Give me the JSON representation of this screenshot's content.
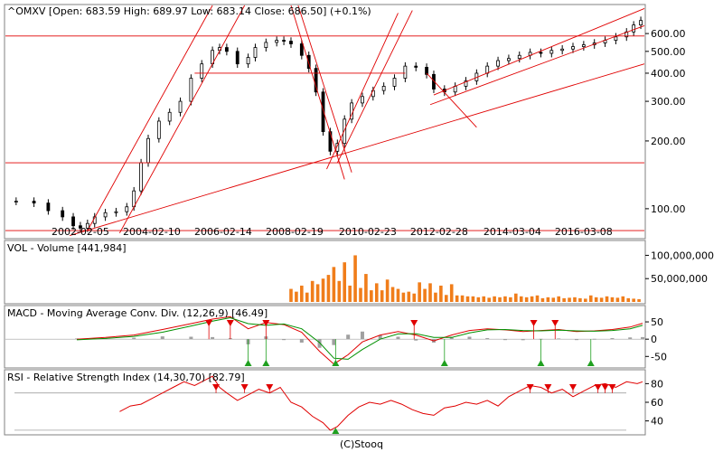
{
  "footer": "(C)Stooq",
  "colors": {
    "price": "#000000",
    "trend": "#e00000",
    "volume": "#f07d1a",
    "macd_line": "#e00000",
    "signal_line": "#009000",
    "hist": "#a0a0a0",
    "rsi": "#e00000",
    "sell": "#e00000",
    "buy": "#20a020",
    "grid": "#a0a0a0"
  },
  "chart_data": [
    {
      "type": "candlestick",
      "title": "^OMXV [Open: 683.59  High: 689.97  Low: 683.14  Close: 686.50]  (+0.1%)",
      "scale": "log",
      "x_tick_labels": [
        "2002-02-05",
        "2004-02-10",
        "2006-02-14",
        "2008-02-19",
        "2010-02-23",
        "2012-02-28",
        "2014-03-04",
        "2016-03-08"
      ],
      "x_range": [
        2000.0,
        2017.9
      ],
      "y_tick_labels": [
        "600.00",
        "500.00",
        "400.00",
        "300.00",
        "200.00",
        "100.00"
      ],
      "y_ticks": [
        600,
        500,
        400,
        300,
        200,
        100
      ],
      "ylim": [
        75,
        800
      ],
      "points": [
        [
          2000.3,
          108
        ],
        [
          2000.8,
          106
        ],
        [
          2001.2,
          98
        ],
        [
          2001.6,
          92
        ],
        [
          2001.9,
          84
        ],
        [
          2002.1,
          82
        ],
        [
          2002.3,
          86
        ],
        [
          2002.5,
          92
        ],
        [
          2002.8,
          96
        ],
        [
          2003.1,
          97
        ],
        [
          2003.4,
          102
        ],
        [
          2003.6,
          120
        ],
        [
          2003.8,
          160
        ],
        [
          2004.0,
          205
        ],
        [
          2004.3,
          245
        ],
        [
          2004.6,
          268
        ],
        [
          2004.9,
          300
        ],
        [
          2005.2,
          380
        ],
        [
          2005.5,
          440
        ],
        [
          2005.8,
          505
        ],
        [
          2006.0,
          520
        ],
        [
          2006.2,
          500
        ],
        [
          2006.5,
          440
        ],
        [
          2006.8,
          470
        ],
        [
          2007.0,
          520
        ],
        [
          2007.3,
          548
        ],
        [
          2007.6,
          560
        ],
        [
          2007.8,
          555
        ],
        [
          2008.0,
          540
        ],
        [
          2008.3,
          480
        ],
        [
          2008.5,
          420
        ],
        [
          2008.7,
          330
        ],
        [
          2008.9,
          220
        ],
        [
          2009.1,
          180
        ],
        [
          2009.3,
          195
        ],
        [
          2009.5,
          250
        ],
        [
          2009.7,
          295
        ],
        [
          2010.0,
          315
        ],
        [
          2010.3,
          335
        ],
        [
          2010.6,
          350
        ],
        [
          2010.9,
          380
        ],
        [
          2011.2,
          430
        ],
        [
          2011.5,
          425
        ],
        [
          2011.8,
          395
        ],
        [
          2012.0,
          340
        ],
        [
          2012.3,
          330
        ],
        [
          2012.6,
          350
        ],
        [
          2012.9,
          370
        ],
        [
          2013.2,
          400
        ],
        [
          2013.5,
          430
        ],
        [
          2013.8,
          455
        ],
        [
          2014.1,
          465
        ],
        [
          2014.4,
          480
        ],
        [
          2014.7,
          495
        ],
        [
          2015.0,
          490
        ],
        [
          2015.3,
          505
        ],
        [
          2015.6,
          512
        ],
        [
          2015.9,
          525
        ],
        [
          2016.2,
          535
        ],
        [
          2016.5,
          545
        ],
        [
          2016.8,
          560
        ],
        [
          2017.1,
          580
        ],
        [
          2017.4,
          610
        ],
        [
          2017.6,
          655
        ],
        [
          2017.8,
          686
        ]
      ]
    },
    {
      "type": "bar",
      "title": "VOL - Volume [441,984]",
      "y_tick_labels": [
        "100,000,000",
        "50,000,000"
      ],
      "y_ticks": [
        100000000,
        50000000
      ],
      "ylim": [
        0,
        128000000
      ],
      "x": [
        2008.0,
        2008.15,
        2008.3,
        2008.45,
        2008.6,
        2008.75,
        2008.9,
        2009.05,
        2009.2,
        2009.35,
        2009.5,
        2009.65,
        2009.8,
        2009.95,
        2010.1,
        2010.25,
        2010.4,
        2010.55,
        2010.7,
        2010.85,
        2011.0,
        2011.15,
        2011.3,
        2011.45,
        2011.6,
        2011.75,
        2011.9,
        2012.05,
        2012.2,
        2012.35,
        2012.5,
        2012.65,
        2012.8,
        2012.95,
        2013.1,
        2013.25,
        2013.4,
        2013.55,
        2013.7,
        2013.85,
        2014.0,
        2014.15,
        2014.3,
        2014.45,
        2014.6,
        2014.75,
        2014.9,
        2015.05,
        2015.2,
        2015.35,
        2015.5,
        2015.65,
        2015.8,
        2015.95,
        2016.1,
        2016.25,
        2016.4,
        2016.55,
        2016.7,
        2016.85,
        2017.0,
        2017.15,
        2017.3,
        2017.45,
        2017.6,
        2017.75
      ],
      "values": [
        28000000,
        22000000,
        35000000,
        20000000,
        45000000,
        38000000,
        50000000,
        58000000,
        75000000,
        45000000,
        85000000,
        35000000,
        100000000,
        30000000,
        60000000,
        25000000,
        40000000,
        25000000,
        48000000,
        32000000,
        28000000,
        20000000,
        22000000,
        18000000,
        42000000,
        28000000,
        40000000,
        20000000,
        35000000,
        15000000,
        38000000,
        14000000,
        14000000,
        12000000,
        12000000,
        10000000,
        12000000,
        9000000,
        12000000,
        10000000,
        12000000,
        10000000,
        18000000,
        12000000,
        10000000,
        12000000,
        14000000,
        8000000,
        10000000,
        9000000,
        12000000,
        8000000,
        9000000,
        10000000,
        8000000,
        7000000,
        14000000,
        10000000,
        9000000,
        12000000,
        10000000,
        9000000,
        12000000,
        8000000,
        7000000,
        6000000
      ]
    },
    {
      "type": "line",
      "title": "MACD - Moving Average Conv. Div. (12,26,9) [46.49]",
      "y_tick_labels": [
        "50",
        "0",
        "-50"
      ],
      "y_ticks": [
        50,
        0,
        -50
      ],
      "ylim": [
        -78,
        92
      ],
      "x": [
        2002.0,
        2002.8,
        2003.6,
        2004.4,
        2005.2,
        2005.8,
        2006.3,
        2006.8,
        2007.3,
        2007.8,
        2008.3,
        2008.8,
        2009.2,
        2009.6,
        2010.0,
        2010.5,
        2011.0,
        2011.5,
        2012.0,
        2012.5,
        2013.0,
        2013.5,
        2014.0,
        2014.5,
        2015.0,
        2015.5,
        2016.0,
        2016.5,
        2017.0,
        2017.5,
        2017.85
      ],
      "series": [
        {
          "values": [
            0,
            5,
            12,
            28,
            45,
            58,
            65,
            30,
            48,
            42,
            20,
            -35,
            -72,
            -45,
            -8,
            12,
            22,
            12,
            -5,
            12,
            25,
            30,
            27,
            22,
            25,
            28,
            22,
            24,
            28,
            35,
            46
          ]
        },
        {
          "values": [
            -2,
            2,
            8,
            20,
            38,
            52,
            62,
            45,
            40,
            44,
            30,
            -10,
            -55,
            -58,
            -30,
            0,
            15,
            16,
            5,
            5,
            18,
            27,
            28,
            25,
            24,
            26,
            24,
            23,
            25,
            30,
            40
          ]
        }
      ],
      "histogram": [
        2,
        3,
        4,
        8,
        7,
        6,
        3,
        -15,
        8,
        -2,
        -10,
        -25,
        -17,
        13,
        22,
        12,
        7,
        -4,
        -10,
        7,
        7,
        3,
        -1,
        -3,
        1,
        2,
        -2,
        1,
        3,
        5,
        6
      ],
      "sell_signals": [
        2005.7,
        2006.3,
        2007.3,
        2011.45,
        2014.8,
        2015.4
      ],
      "buy_signals": [
        2006.8,
        2007.3,
        2009.25,
        2012.3,
        2015.0,
        2016.4
      ]
    },
    {
      "type": "line",
      "title": "RSI - Relative Strength Index (14,30,70) [82.79]",
      "y_tick_labels": [
        "80",
        "60",
        "40"
      ],
      "y_ticks": [
        80,
        60,
        40
      ],
      "ylim": [
        27,
        93
      ],
      "guide_lines": [
        70,
        30
      ],
      "x": [
        2003.2,
        2003.5,
        2003.8,
        2004.1,
        2004.4,
        2004.7,
        2005.0,
        2005.3,
        2005.6,
        2005.8,
        2006.0,
        2006.2,
        2006.5,
        2006.8,
        2007.1,
        2007.4,
        2007.7,
        2008.0,
        2008.3,
        2008.6,
        2008.9,
        2009.1,
        2009.3,
        2009.6,
        2009.9,
        2010.2,
        2010.5,
        2010.8,
        2011.1,
        2011.4,
        2011.7,
        2012.0,
        2012.3,
        2012.6,
        2012.9,
        2013.2,
        2013.5,
        2013.8,
        2014.1,
        2014.4,
        2014.7,
        2015.0,
        2015.3,
        2015.6,
        2015.9,
        2016.2,
        2016.5,
        2016.8,
        2017.1,
        2017.4,
        2017.7,
        2017.85
      ],
      "values": [
        50,
        56,
        58,
        64,
        70,
        76,
        82,
        78,
        84,
        88,
        76,
        70,
        62,
        68,
        74,
        70,
        76,
        60,
        55,
        45,
        38,
        30,
        34,
        46,
        55,
        60,
        58,
        62,
        58,
        52,
        48,
        46,
        54,
        56,
        60,
        58,
        62,
        56,
        66,
        72,
        78,
        76,
        70,
        74,
        66,
        72,
        78,
        80,
        76,
        82,
        80,
        82
      ],
      "sell_signals": [
        2005.9,
        2006.7,
        2007.4,
        2014.7,
        2015.2,
        2015.9,
        2016.6,
        2016.8,
        2017.0
      ],
      "buy_signals": [
        2009.25
      ]
    }
  ]
}
